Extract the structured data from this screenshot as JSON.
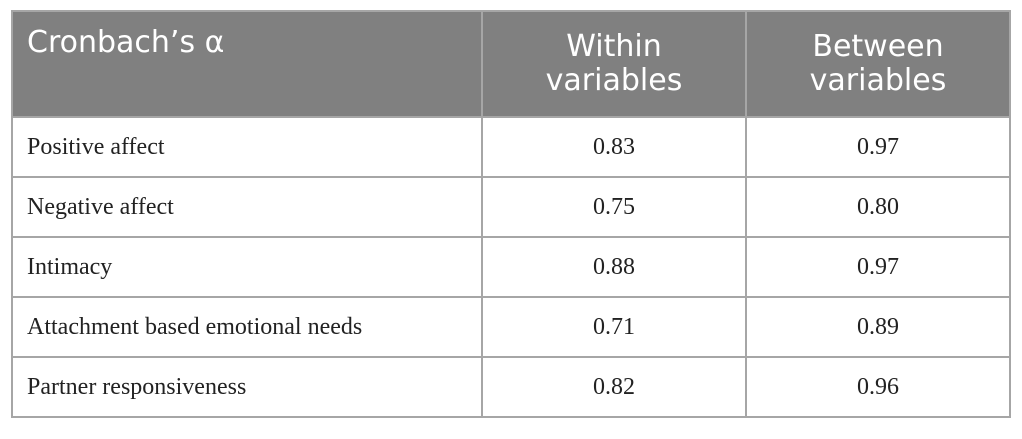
{
  "table": {
    "header": [
      "Cronbach’s α",
      "Within variables",
      "Between variables"
    ],
    "rows": [
      [
        "Positive affect",
        "0.83",
        "0.97"
      ],
      [
        "Negative affect",
        "0.75",
        "0.80"
      ],
      [
        "Intimacy",
        "0.88",
        "0.97"
      ],
      [
        "Attachment based emotional needs",
        "0.71",
        "0.89"
      ],
      [
        "Partner responsiveness",
        "0.82",
        "0.96"
      ]
    ]
  }
}
